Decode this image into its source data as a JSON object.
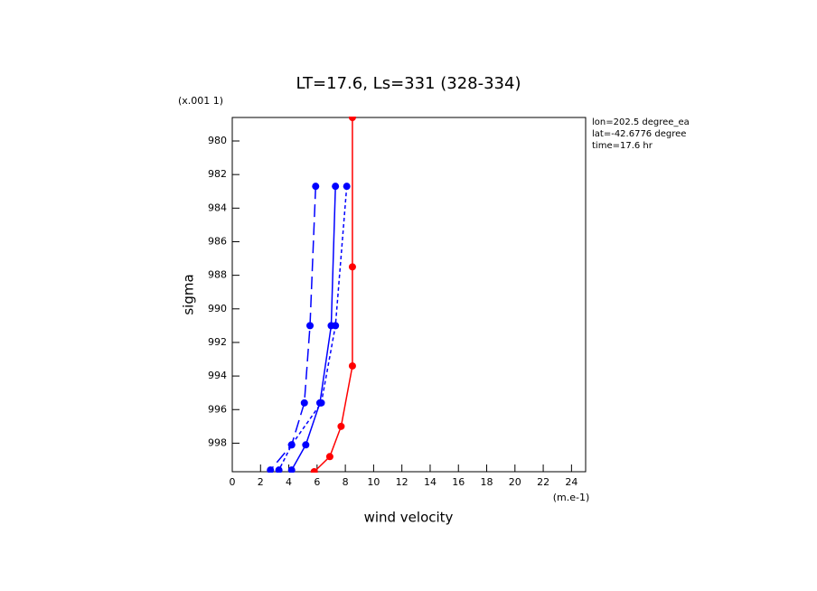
{
  "chart_data": {
    "type": "line",
    "title": "LT=17.6, Ls=331 (328-334)",
    "x_label": "wind velocity",
    "y_label": "sigma",
    "x_units": "(m.e-1)",
    "y_units": "(x.001 1)",
    "annotations": [
      "lon=202.5 degree_ea",
      "lat=-42.6776 degree",
      "time=17.6 hr"
    ],
    "xlim": [
      0,
      25
    ],
    "xticks": [
      0,
      2,
      4,
      6,
      8,
      10,
      12,
      14,
      16,
      18,
      20,
      22,
      24
    ],
    "ylim": [
      999.7,
      978.6
    ],
    "yticks": [
      980,
      982,
      984,
      986,
      988,
      990,
      992,
      994,
      996,
      998
    ],
    "series": [
      {
        "color": "#ff0000",
        "dash": "solid",
        "x": [
          8.5,
          8.5,
          8.5,
          7.7,
          6.9,
          5.8
        ],
        "values": [
          978.6,
          987.5,
          993.4,
          997.0,
          998.8,
          999.7
        ]
      },
      {
        "color": "#0000ff",
        "dash": "long",
        "x": [
          5.9,
          5.5,
          5.1,
          4.2,
          2.7
        ],
        "values": [
          982.7,
          991.0,
          995.6,
          998.1,
          999.6
        ]
      },
      {
        "color": "#0000ff",
        "dash": "solid",
        "x": [
          7.3,
          7.0,
          6.2,
          5.2,
          4.2
        ],
        "values": [
          982.7,
          991.0,
          995.6,
          998.1,
          999.6
        ]
      },
      {
        "color": "#0000ff",
        "dash": "short",
        "x": [
          8.1,
          7.3,
          6.3,
          4.2,
          3.3
        ],
        "values": [
          982.7,
          991.0,
          995.6,
          998.1,
          999.6
        ]
      }
    ]
  }
}
